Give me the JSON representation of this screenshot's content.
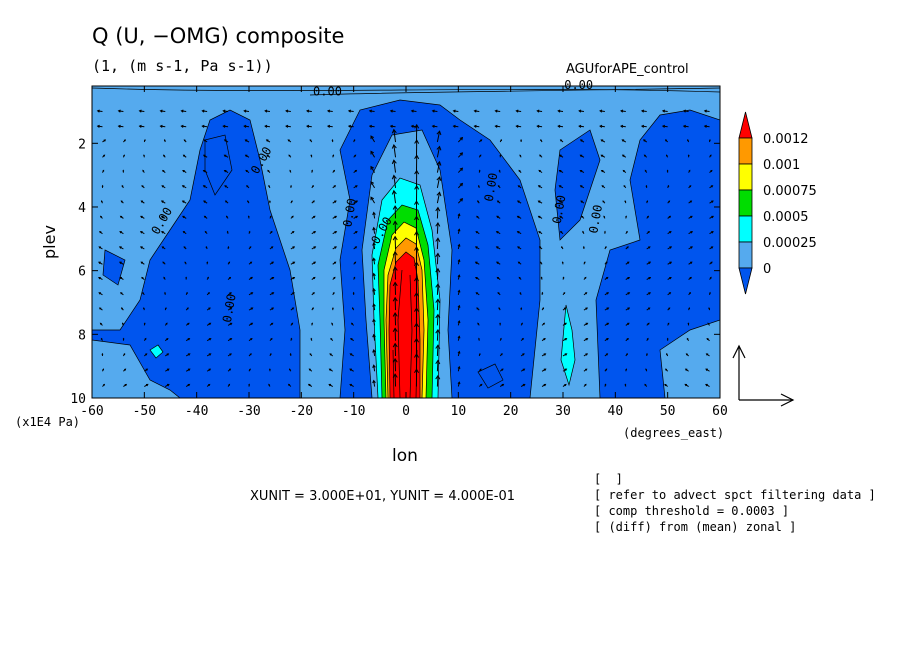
{
  "chart_data": {
    "type": "heatmap",
    "title": "Q (U, −OMG) composite",
    "subtitle": "(1, (m s-1, Pa s-1))",
    "case_label": "AGUforAPE_control",
    "xlabel": "lon",
    "xunit": "(degrees_east)",
    "ylabel": "plev",
    "yunit": "(x1E4 Pa)",
    "xlim": [
      -60,
      60
    ],
    "ylim": [
      10,
      0.2
    ],
    "x_ticks": [
      "-60",
      "-50",
      "-40",
      "-30",
      "-20",
      "-10",
      "0",
      "10",
      "20",
      "30",
      "40",
      "50",
      "60"
    ],
    "y_ticks": [
      "2",
      "4",
      "6",
      "8",
      "10"
    ],
    "contour_labels": [
      "0.00",
      "0.00",
      "0.00",
      "0.00",
      "0.00",
      "0.00",
      "0.00",
      "0.00",
      "0.00",
      "0.00"
    ],
    "colorbar": {
      "levels": [
        "0.0012",
        "0.001",
        "0.00075",
        "0.0005",
        "0.00025",
        "0"
      ],
      "colors": [
        "#ff0000",
        "#ff9900",
        "#ffff00",
        "#00dd00",
        "#00ffff",
        "#55aaee",
        "#0055ee"
      ]
    },
    "vector_units": "XUNIT = 3.000E+01, YUNIT = 4.000E-01",
    "notes": [
      "[  ]",
      "[ refer to advect spct filtering data ]",
      "[ comp threshold = 0.0003 ]",
      "[ (diff) from (mean) zonal ]"
    ],
    "colors": {
      "deep_blue": "#0055ee",
      "light_blue": "#55aaee",
      "cyan": "#00ffff",
      "green": "#00dd00",
      "yellow": "#ffff00",
      "orange": "#ff9900",
      "red": "#ff0000"
    }
  }
}
